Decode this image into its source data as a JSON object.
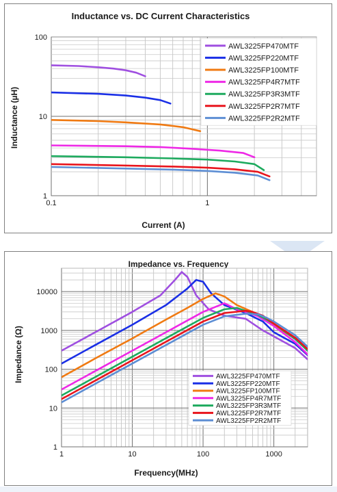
{
  "chart_data": [
    {
      "type": "line",
      "title": "Inductance vs. DC Current Characteristics",
      "xlabel": "Current (A)",
      "ylabel": "Inductance (µH)",
      "xscale": "log",
      "yscale": "log",
      "xlim": [
        0.1,
        5
      ],
      "ylim": [
        1,
        100
      ],
      "x_ticks": [
        0.1,
        1
      ],
      "x_tick_labels": [
        "0.1",
        "1"
      ],
      "y_ticks": [
        1,
        10,
        100
      ],
      "y_tick_labels": [
        "1",
        "10",
        "100"
      ],
      "grid": true,
      "legend_position": "top-right",
      "series": [
        {
          "name": "AWL3225FP470MTF",
          "color": "#9f4fe0",
          "x": [
            0.1,
            0.15,
            0.2,
            0.25,
            0.3,
            0.35,
            0.4
          ],
          "y": [
            44,
            43,
            41.5,
            40,
            38,
            35.5,
            32
          ]
        },
        {
          "name": "AWL3225FP220MTF",
          "color": "#1a2fe6",
          "x": [
            0.1,
            0.2,
            0.3,
            0.4,
            0.5,
            0.58
          ],
          "y": [
            20,
            19.2,
            18.3,
            17.2,
            16,
            14.5
          ]
        },
        {
          "name": "AWL3225FP100MTF",
          "color": "#f07a12",
          "x": [
            0.1,
            0.2,
            0.3,
            0.5,
            0.7,
            0.9
          ],
          "y": [
            9,
            8.7,
            8.4,
            7.9,
            7.3,
            6.5
          ]
        },
        {
          "name": "AWL3225FP4R7MTF",
          "color": "#ee28e6",
          "x": [
            0.1,
            0.3,
            0.5,
            0.8,
            1.2,
            1.7,
            2.0
          ],
          "y": [
            4.3,
            4.2,
            4.1,
            3.9,
            3.7,
            3.45,
            3.05
          ]
        },
        {
          "name": "AWL3225FP3R3MTF",
          "color": "#1daa5e",
          "x": [
            0.1,
            0.3,
            0.6,
            1.0,
            1.5,
            2.0,
            2.3
          ],
          "y": [
            3.15,
            3.05,
            2.95,
            2.85,
            2.7,
            2.5,
            2.1
          ]
        },
        {
          "name": "AWL3225FP2R7MTF",
          "color": "#e8141c",
          "x": [
            0.1,
            0.3,
            0.6,
            1.0,
            1.5,
            2.1,
            2.5
          ],
          "y": [
            2.5,
            2.4,
            2.33,
            2.25,
            2.15,
            2.0,
            1.75
          ]
        },
        {
          "name": "AWL3225FP2R2MTF",
          "color": "#5d8ed4",
          "x": [
            0.1,
            0.3,
            0.6,
            1.0,
            1.5,
            2.1,
            2.5
          ],
          "y": [
            2.3,
            2.2,
            2.13,
            2.05,
            1.95,
            1.8,
            1.57
          ]
        }
      ]
    },
    {
      "type": "line",
      "title": "Impedance vs. Frequency",
      "xlabel": "Frequency(MHz)",
      "ylabel": "Impedance (Ω)",
      "xscale": "log",
      "yscale": "log",
      "xlim": [
        1,
        3000
      ],
      "ylim": [
        1,
        40000
      ],
      "x_ticks": [
        1,
        10,
        100,
        1000
      ],
      "x_tick_labels": [
        "1",
        "10",
        "100",
        "1000"
      ],
      "y_ticks": [
        1,
        10,
        100,
        1000,
        10000
      ],
      "y_tick_labels": [
        "1",
        "10",
        "100",
        "1000",
        "10000"
      ],
      "grid": true,
      "legend_position": "bottom-right",
      "series": [
        {
          "name": "AWL3225FP470MTF",
          "color": "#9f4fe0",
          "x": [
            1,
            3,
            10,
            25,
            40,
            50,
            60,
            80,
            120,
            200,
            400,
            700,
            1000,
            2000,
            3000
          ],
          "y": [
            300,
            900,
            3000,
            8000,
            20000,
            32000,
            24000,
            8000,
            3500,
            2400,
            2000,
            1000,
            700,
            350,
            180
          ]
        },
        {
          "name": "AWL3225FP220MTF",
          "color": "#1a2fe6",
          "x": [
            1,
            3,
            10,
            30,
            60,
            80,
            100,
            130,
            200,
            400,
            700,
            1000,
            2000,
            3000
          ],
          "y": [
            140,
            420,
            1400,
            4500,
            12000,
            20000,
            18000,
            9000,
            4500,
            2800,
            1700,
            900,
            450,
            230
          ]
        },
        {
          "name": "AWL3225FP100MTF",
          "color": "#f07a12",
          "x": [
            1,
            3,
            10,
            30,
            60,
            100,
            150,
            200,
            300,
            500,
            1000,
            2000,
            3000
          ],
          "y": [
            62,
            190,
            620,
            1900,
            3800,
            6500,
            9000,
            7500,
            4500,
            3000,
            1400,
            600,
            320
          ]
        },
        {
          "name": "AWL3225FP4R7MTF",
          "color": "#ee28e6",
          "x": [
            1,
            3,
            10,
            30,
            100,
            200,
            300,
            400,
            600,
            1000,
            2000,
            3000
          ],
          "y": [
            30,
            90,
            300,
            900,
            3000,
            5000,
            3500,
            3000,
            2300,
            1300,
            500,
            240
          ]
        },
        {
          "name": "AWL3225FP3R3MTF",
          "color": "#1daa5e",
          "x": [
            1,
            3,
            10,
            30,
            100,
            200,
            300,
            400,
            600,
            1000,
            2000,
            3000
          ],
          "y": [
            21,
            63,
            210,
            630,
            2100,
            3500,
            3800,
            3200,
            2500,
            1500,
            600,
            300
          ]
        },
        {
          "name": "AWL3225FP2R7MTF",
          "color": "#e8141c",
          "x": [
            1,
            3,
            10,
            30,
            100,
            200,
            400,
            500,
            700,
            1000,
            2000,
            3000
          ],
          "y": [
            17,
            51,
            170,
            510,
            1700,
            2800,
            3200,
            3000,
            2400,
            1500,
            650,
            330
          ]
        },
        {
          "name": "AWL3225FP2R2MTF",
          "color": "#5d8ed4",
          "x": [
            1,
            3,
            10,
            30,
            100,
            200,
            400,
            600,
            800,
            1000,
            2000,
            3000
          ],
          "y": [
            14,
            42,
            140,
            420,
            1400,
            2300,
            2700,
            2600,
            2100,
            1700,
            750,
            380
          ]
        }
      ]
    }
  ]
}
